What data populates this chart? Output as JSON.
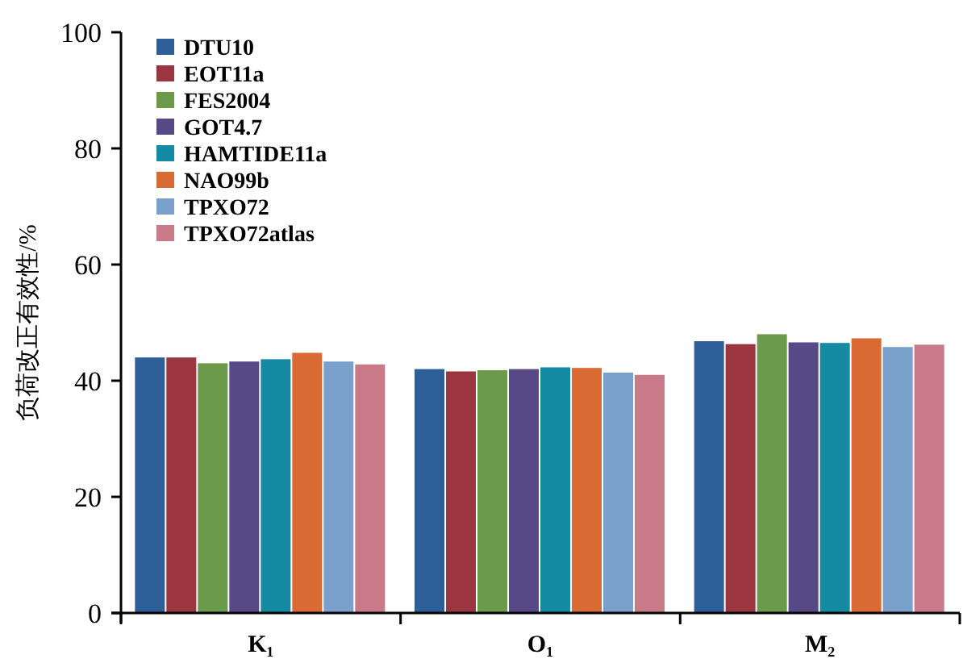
{
  "chart_data": {
    "type": "bar",
    "ylabel": "负荷改正有效性/%",
    "categories": [
      "K₁",
      "O₁",
      "M₂"
    ],
    "ylim": [
      0,
      100
    ],
    "yticks": [
      0,
      20,
      40,
      60,
      80,
      100
    ],
    "grid": false,
    "legend": "top left",
    "series": [
      {
        "name": "DTU10",
        "color": "#2e5f98",
        "values": [
          44.0,
          42.0,
          46.8
        ]
      },
      {
        "name": "EOT11a",
        "color": "#9b3540",
        "values": [
          44.0,
          41.6,
          46.3
        ]
      },
      {
        "name": "FES2004",
        "color": "#6a9a4a",
        "values": [
          43.0,
          41.8,
          48.0
        ]
      },
      {
        "name": "GOT4.7",
        "color": "#574886",
        "values": [
          43.3,
          42.0,
          46.6
        ]
      },
      {
        "name": "HAMTIDE11a",
        "color": "#148ba3",
        "values": [
          43.7,
          42.3,
          46.5
        ]
      },
      {
        "name": "NAO99b",
        "color": "#d96a34",
        "values": [
          44.8,
          42.2,
          47.3
        ]
      },
      {
        "name": "TPXO72",
        "color": "#7aa0cc",
        "values": [
          43.3,
          41.4,
          45.8
        ]
      },
      {
        "name": "TPXO72atlas",
        "color": "#c97a88",
        "values": [
          42.8,
          41.0,
          46.2
        ]
      }
    ]
  }
}
